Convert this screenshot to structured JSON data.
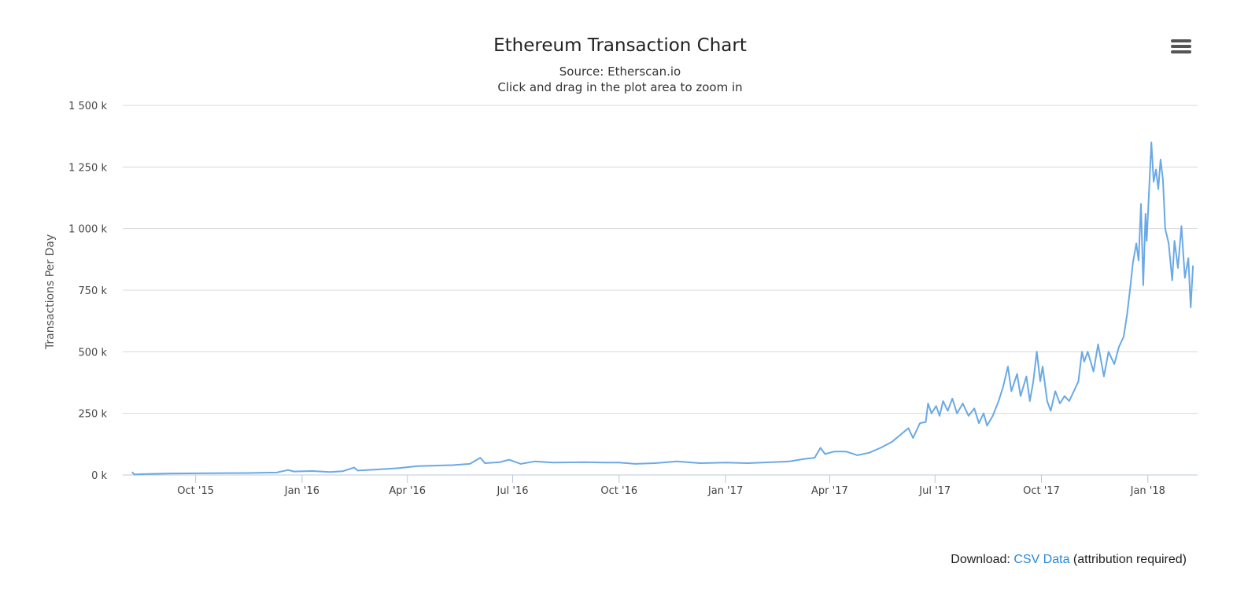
{
  "chart_data": {
    "type": "line",
    "title": "Ethereum Transaction Chart",
    "subtitle": "Source: Etherscan.io",
    "subtitle2": "Click and drag in the plot area to zoom in",
    "ylabel": "Transactions Per Day",
    "xlabel": "",
    "ylim": [
      0,
      1500000
    ],
    "xlim": [
      "2015-07-30",
      "2018-02-13"
    ],
    "y_ticks": [
      0,
      250000,
      500000,
      750000,
      1000000,
      1250000,
      1500000
    ],
    "y_tick_labels": [
      "0 k",
      "250 k",
      "500 k",
      "750 k",
      "1 000 k",
      "1 250 k",
      "1 500 k"
    ],
    "x_ticks": [
      "2015-10-01",
      "2016-01-01",
      "2016-04-01",
      "2016-07-01",
      "2016-10-01",
      "2017-01-01",
      "2017-04-01",
      "2017-07-01",
      "2017-10-01",
      "2018-01-01"
    ],
    "x_tick_labels": [
      "Oct '15",
      "Jan '16",
      "Apr '16",
      "Jul '16",
      "Oct '16",
      "Jan '17",
      "Apr '17",
      "Jul '17",
      "Oct '17",
      "Jan '18"
    ],
    "grid": true,
    "legend": "none",
    "series": [
      {
        "color": "#6aa9e6",
        "points": [
          [
            "2015-08-07",
            12000
          ],
          [
            "2015-08-09",
            2000
          ],
          [
            "2015-08-20",
            4000
          ],
          [
            "2015-09-10",
            6000
          ],
          [
            "2015-10-15",
            7000
          ],
          [
            "2015-11-15",
            8000
          ],
          [
            "2015-12-10",
            10000
          ],
          [
            "2015-12-20",
            20000
          ],
          [
            "2015-12-25",
            14000
          ],
          [
            "2016-01-10",
            16000
          ],
          [
            "2016-01-25",
            12000
          ],
          [
            "2016-02-05",
            15000
          ],
          [
            "2016-02-15",
            30000
          ],
          [
            "2016-02-18",
            18000
          ],
          [
            "2016-03-05",
            22000
          ],
          [
            "2016-03-25",
            28000
          ],
          [
            "2016-04-10",
            36000
          ],
          [
            "2016-04-25",
            38000
          ],
          [
            "2016-05-10",
            40000
          ],
          [
            "2016-05-25",
            45000
          ],
          [
            "2016-06-03",
            70000
          ],
          [
            "2016-06-07",
            48000
          ],
          [
            "2016-06-20",
            52000
          ],
          [
            "2016-06-28",
            62000
          ],
          [
            "2016-07-08",
            45000
          ],
          [
            "2016-07-20",
            55000
          ],
          [
            "2016-08-05",
            50000
          ],
          [
            "2016-09-01",
            52000
          ],
          [
            "2016-09-20",
            50000
          ],
          [
            "2016-10-01",
            50000
          ],
          [
            "2016-10-15",
            45000
          ],
          [
            "2016-11-01",
            48000
          ],
          [
            "2016-11-20",
            55000
          ],
          [
            "2016-12-10",
            48000
          ],
          [
            "2017-01-01",
            50000
          ],
          [
            "2017-01-20",
            48000
          ],
          [
            "2017-02-10",
            52000
          ],
          [
            "2017-02-25",
            55000
          ],
          [
            "2017-03-10",
            65000
          ],
          [
            "2017-03-19",
            70000
          ],
          [
            "2017-03-24",
            110000
          ],
          [
            "2017-03-28",
            85000
          ],
          [
            "2017-04-05",
            95000
          ],
          [
            "2017-04-15",
            95000
          ],
          [
            "2017-04-25",
            80000
          ],
          [
            "2017-05-05",
            90000
          ],
          [
            "2017-05-15",
            110000
          ],
          [
            "2017-05-25",
            135000
          ],
          [
            "2017-06-03",
            170000
          ],
          [
            "2017-06-08",
            190000
          ],
          [
            "2017-06-12",
            150000
          ],
          [
            "2017-06-18",
            210000
          ],
          [
            "2017-06-23",
            215000
          ],
          [
            "2017-06-25",
            290000
          ],
          [
            "2017-06-28",
            250000
          ],
          [
            "2017-07-02",
            280000
          ],
          [
            "2017-07-05",
            240000
          ],
          [
            "2017-07-08",
            300000
          ],
          [
            "2017-07-12",
            260000
          ],
          [
            "2017-07-16",
            310000
          ],
          [
            "2017-07-20",
            250000
          ],
          [
            "2017-07-25",
            290000
          ],
          [
            "2017-07-30",
            240000
          ],
          [
            "2017-08-04",
            270000
          ],
          [
            "2017-08-08",
            210000
          ],
          [
            "2017-08-12",
            250000
          ],
          [
            "2017-08-15",
            200000
          ],
          [
            "2017-08-20",
            240000
          ],
          [
            "2017-08-25",
            300000
          ],
          [
            "2017-08-29",
            360000
          ],
          [
            "2017-09-02",
            440000
          ],
          [
            "2017-09-05",
            340000
          ],
          [
            "2017-09-10",
            410000
          ],
          [
            "2017-09-13",
            320000
          ],
          [
            "2017-09-18",
            400000
          ],
          [
            "2017-09-21",
            300000
          ],
          [
            "2017-09-24",
            380000
          ],
          [
            "2017-09-27",
            500000
          ],
          [
            "2017-09-30",
            380000
          ],
          [
            "2017-10-02",
            440000
          ],
          [
            "2017-10-06",
            300000
          ],
          [
            "2017-10-09",
            260000
          ],
          [
            "2017-10-13",
            340000
          ],
          [
            "2017-10-17",
            290000
          ],
          [
            "2017-10-21",
            320000
          ],
          [
            "2017-10-25",
            300000
          ],
          [
            "2017-10-29",
            340000
          ],
          [
            "2017-11-02",
            380000
          ],
          [
            "2017-11-05",
            500000
          ],
          [
            "2017-11-07",
            460000
          ],
          [
            "2017-11-10",
            500000
          ],
          [
            "2017-11-15",
            420000
          ],
          [
            "2017-11-19",
            530000
          ],
          [
            "2017-11-24",
            400000
          ],
          [
            "2017-11-28",
            500000
          ],
          [
            "2017-12-03",
            450000
          ],
          [
            "2017-12-07",
            520000
          ],
          [
            "2017-12-11",
            560000
          ],
          [
            "2017-12-14",
            650000
          ],
          [
            "2017-12-17",
            770000
          ],
          [
            "2017-12-19",
            860000
          ],
          [
            "2017-12-22",
            940000
          ],
          [
            "2017-12-24",
            870000
          ],
          [
            "2017-12-26",
            1100000
          ],
          [
            "2017-12-28",
            770000
          ],
          [
            "2017-12-30",
            1060000
          ],
          [
            "2017-12-31",
            950000
          ],
          [
            "2018-01-04",
            1350000
          ],
          [
            "2018-01-06",
            1190000
          ],
          [
            "2018-01-08",
            1240000
          ],
          [
            "2018-01-10",
            1160000
          ],
          [
            "2018-01-12",
            1280000
          ],
          [
            "2018-01-14",
            1200000
          ],
          [
            "2018-01-16",
            1000000
          ],
          [
            "2018-01-19",
            940000
          ],
          [
            "2018-01-22",
            790000
          ],
          [
            "2018-01-24",
            950000
          ],
          [
            "2018-01-27",
            840000
          ],
          [
            "2018-01-30",
            1010000
          ],
          [
            "2018-02-02",
            800000
          ],
          [
            "2018-02-05",
            880000
          ],
          [
            "2018-02-07",
            680000
          ],
          [
            "2018-02-09",
            850000
          ]
        ]
      }
    ]
  },
  "menu": {
    "icon": "hamburger-menu-icon"
  },
  "download": {
    "prefix": "Download:",
    "link_text": "CSV Data",
    "suffix": "(attribution required)"
  }
}
